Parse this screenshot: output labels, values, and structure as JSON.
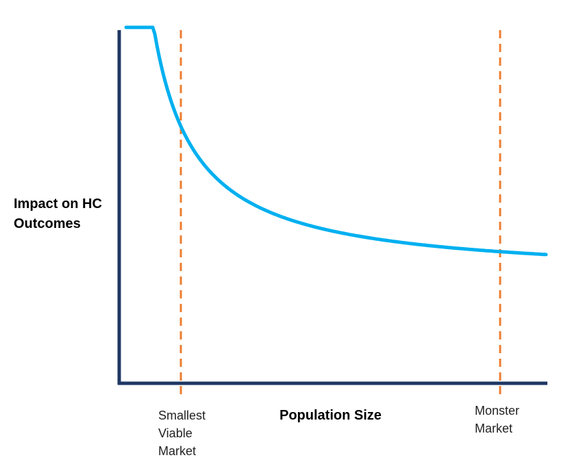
{
  "chart_data": {
    "type": "line",
    "title": "",
    "xlabel": "Population Size",
    "ylabel": "Impact on HC Outcomes",
    "grid": false,
    "legend": "none",
    "series": [
      {
        "color": "#00B0F0",
        "curve": "decreasing-hyperbolic",
        "values": []
      }
    ],
    "reference_lines": [
      {
        "label_lines": [
          "Smallest",
          "Viable",
          "Market"
        ],
        "color": "#ED7D31",
        "style": "dashed"
      },
      {
        "label_lines": [
          "Monster",
          "Market"
        ],
        "color": "#ED7D31",
        "style": "dashed"
      }
    ],
    "axis_color": "#1F3864"
  }
}
